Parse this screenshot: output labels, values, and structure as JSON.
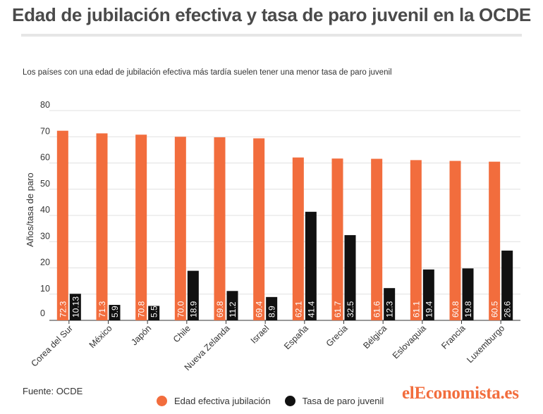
{
  "title": "Edad de jubilación efectiva y tasa de paro juvenil en la OCDE",
  "subtitle": "Los países con una edad de jubilación efectiva más tardía suelen tener una menor tasa de paro juvenil",
  "source": "Fuente: OCDE",
  "logo": "elEconomista.es",
  "colors": {
    "orange": "#f26d3d",
    "black": "#111111",
    "grid": "#e0e0e0",
    "text": "#333333"
  },
  "legend": {
    "series1": "Edad efectiva jubilación",
    "series2": "Tasa de paro juvenil"
  },
  "chart_data": {
    "type": "bar",
    "ylabel": "Años/tasa de paro",
    "xlabel": "",
    "ylim": [
      0,
      80
    ],
    "yticks": [
      0,
      10,
      20,
      30,
      40,
      50,
      60,
      70,
      80
    ],
    "grid": true,
    "legend_position": "bottom",
    "categories": [
      "Corea del Sur",
      "México",
      "Japón",
      "Chile",
      "Nueva Zelanda",
      "Israel",
      "España",
      "Grecia",
      "Bélgica",
      "Eslovaquia",
      "Francia",
      "Luxemburgo"
    ],
    "series": [
      {
        "name": "Edad efectiva jubilación",
        "color": "#f26d3d",
        "values": [
          72.3,
          71.3,
          70.8,
          70.0,
          69.8,
          69.4,
          62.1,
          61.7,
          61.6,
          61.1,
          60.8,
          60.5
        ],
        "labels": [
          "72.3",
          "71.3",
          "70.8",
          "70.0",
          "69.8",
          "69.4",
          "62.1",
          "61.7",
          "61.6",
          "61.1",
          "60.8",
          "60.5"
        ]
      },
      {
        "name": "Tasa de paro juvenil",
        "color": "#111111",
        "values": [
          10.13,
          5.9,
          5.5,
          18.9,
          11.2,
          8.9,
          41.4,
          32.5,
          12.3,
          19.4,
          19.8,
          26.6
        ],
        "labels": [
          "10.13",
          "5.9",
          "5.5",
          "18.9",
          "11.2",
          "8.9",
          "41.4",
          "32.5",
          "12.3",
          "19.4",
          "19.8",
          "26.6"
        ]
      }
    ]
  }
}
